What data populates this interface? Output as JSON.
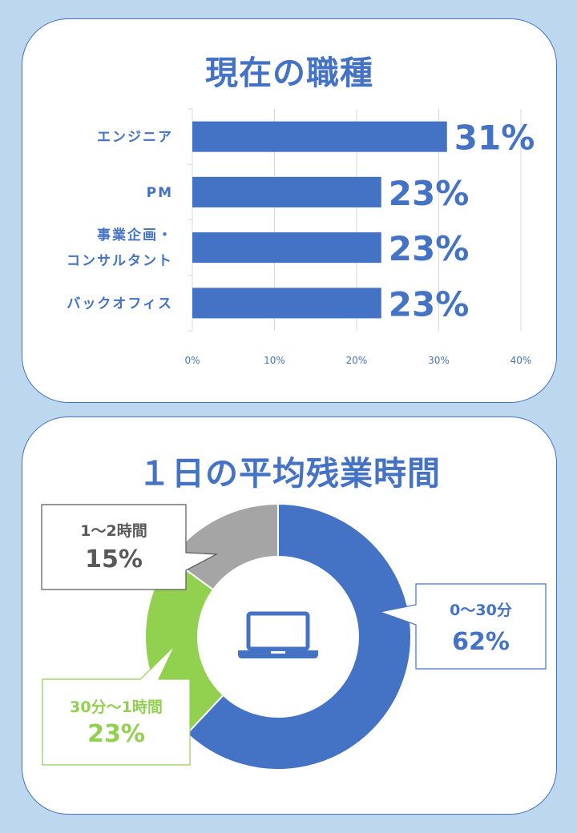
{
  "colors": {
    "background": "#bdd7ee",
    "accent": "#4472c4",
    "bar": "#4472c4",
    "segment_blue": "#4472c4",
    "segment_green": "#92d050",
    "segment_gray": "#a5a5a5",
    "callout_gray_text": "#595959"
  },
  "icons": {
    "center": "laptop-icon"
  },
  "chart_data": [
    {
      "type": "bar",
      "orientation": "horizontal",
      "title": "現在の職種",
      "categories": [
        [
          "エンジニア"
        ],
        [
          "PM"
        ],
        [
          "事業企画・",
          "コンサルタント"
        ],
        [
          "バックオフィス"
        ]
      ],
      "values": [
        31,
        23,
        23,
        23
      ],
      "value_labels": [
        "31%",
        "23%",
        "23%",
        "23%"
      ],
      "xlim": [
        0,
        40
      ],
      "xticks": [
        "0%",
        "10%",
        "20%",
        "30%",
        "40%"
      ],
      "grid": true
    },
    {
      "type": "pie",
      "style": "donut",
      "title": "１日の平均残業時間",
      "segments": [
        {
          "label": "0～30分",
          "value": 62,
          "value_label": "62%",
          "color": "#4472c4"
        },
        {
          "label": "30分～1時間",
          "value": 23,
          "value_label": "23%",
          "color": "#92d050"
        },
        {
          "label": "1～2時間",
          "value": 15,
          "value_label": "15%",
          "color": "#a5a5a5"
        }
      ]
    }
  ]
}
